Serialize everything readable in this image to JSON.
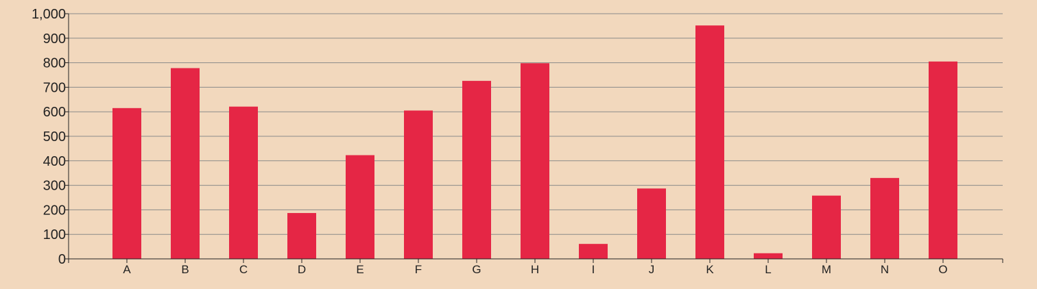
{
  "chart_data": {
    "type": "bar",
    "title": "",
    "xlabel": "",
    "ylabel": "",
    "categories": [
      "A",
      "B",
      "C",
      "D",
      "E",
      "F",
      "G",
      "H",
      "I",
      "J",
      "K",
      "L",
      "M",
      "N",
      "O"
    ],
    "values": [
      615,
      778,
      621,
      187,
      423,
      605,
      726,
      798,
      61,
      287,
      952,
      23,
      258,
      330,
      805
    ],
    "ylim": [
      0,
      1000
    ],
    "yticks": [
      0,
      100,
      200,
      300,
      400,
      500,
      600,
      700,
      800,
      900,
      1000
    ],
    "ytick_labels": [
      "0",
      "100",
      "200",
      "300",
      "400",
      "500",
      "600",
      "700",
      "800",
      "900",
      "1,000"
    ],
    "grid": true,
    "legend": "none",
    "colors": {
      "bar": "#e52645",
      "background": "#f2d8bd",
      "grid": "#8a8a8a",
      "axis": "#222222"
    }
  }
}
